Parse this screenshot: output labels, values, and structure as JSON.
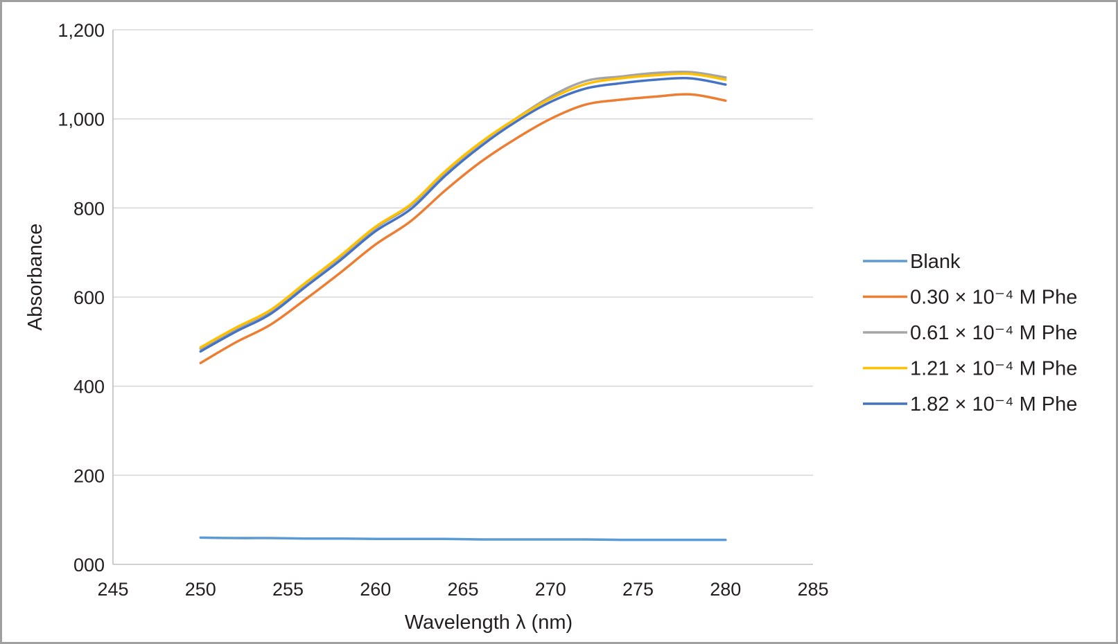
{
  "chart_data": {
    "type": "line",
    "title": "",
    "xlabel": "Wavelength λ (nm)",
    "ylabel": "Absorbance",
    "xlim": [
      245,
      285
    ],
    "ylim": [
      0,
      1200
    ],
    "x_ticks": [
      245,
      250,
      255,
      260,
      265,
      270,
      275,
      280,
      285
    ],
    "y_ticks": [
      0,
      200,
      400,
      600,
      800,
      1000,
      1200
    ],
    "y_tick_labels": [
      "000",
      "200",
      "400",
      "600",
      "800",
      "1,000",
      "1,200"
    ],
    "grid": "horizontal",
    "legend_position": "right",
    "x": [
      250,
      252,
      254,
      256,
      258,
      260,
      262,
      264,
      266,
      268,
      270,
      272,
      274,
      276,
      278,
      280
    ],
    "series": [
      {
        "name": "Blank",
        "color": "#5b9bd5",
        "values": [
          60,
          59,
          59,
          58,
          58,
          57,
          57,
          57,
          56,
          56,
          56,
          56,
          55,
          55,
          55,
          55
        ]
      },
      {
        "name": "0.30 × 10⁻⁴ M Phe",
        "color": "#ed7d31",
        "values": [
          452,
          498,
          538,
          595,
          655,
          718,
          770,
          840,
          903,
          955,
          1000,
          1032,
          1043,
          1050,
          1055,
          1041
        ]
      },
      {
        "name": "0.61 × 10⁻⁴ M Phe",
        "color": "#a5a5a5",
        "values": [
          484,
          528,
          568,
          630,
          690,
          755,
          805,
          880,
          945,
          1000,
          1050,
          1085,
          1095,
          1103,
          1105,
          1093
        ]
      },
      {
        "name": "1.21 × 10⁻⁴ M Phe",
        "color": "#ffc000",
        "values": [
          487,
          531,
          571,
          632,
          693,
          758,
          808,
          883,
          947,
          1000,
          1045,
          1078,
          1091,
          1098,
          1101,
          1088
        ]
      },
      {
        "name": "1.82 × 10⁻⁴ M Phe",
        "color": "#4472c4",
        "values": [
          478,
          522,
          562,
          623,
          683,
          748,
          797,
          873,
          938,
          993,
          1038,
          1068,
          1080,
          1088,
          1091,
          1077
        ]
      }
    ]
  }
}
